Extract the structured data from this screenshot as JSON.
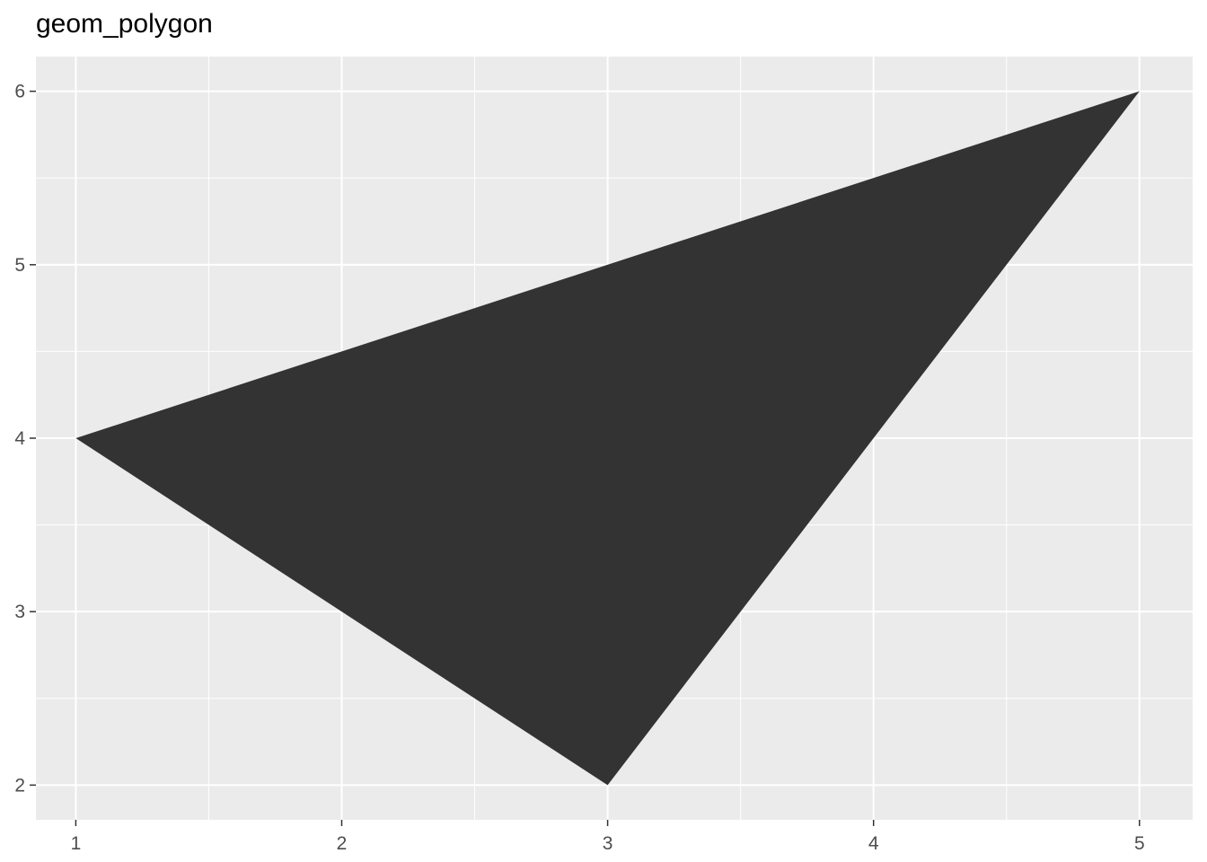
{
  "chart_data": {
    "type": "polygon",
    "title": "geom_polygon",
    "xlabel": "",
    "ylabel": "",
    "xlim": [
      0.85,
      5.2
    ],
    "ylim": [
      1.8,
      6.2
    ],
    "x_ticks": [
      1,
      2,
      3,
      4,
      5
    ],
    "y_ticks": [
      2,
      3,
      4,
      5,
      6
    ],
    "x_minor_ticks": [
      1.5,
      2.5,
      3.5,
      4.5
    ],
    "y_minor_ticks": [
      2.5,
      3.5,
      4.5,
      5.5
    ],
    "grid": true,
    "polygon": {
      "x": [
        1,
        3,
        5
      ],
      "y": [
        4,
        2,
        6
      ],
      "fill": "#333333"
    },
    "panel_background": "#EBEBEB",
    "grid_color": "#FFFFFF"
  }
}
